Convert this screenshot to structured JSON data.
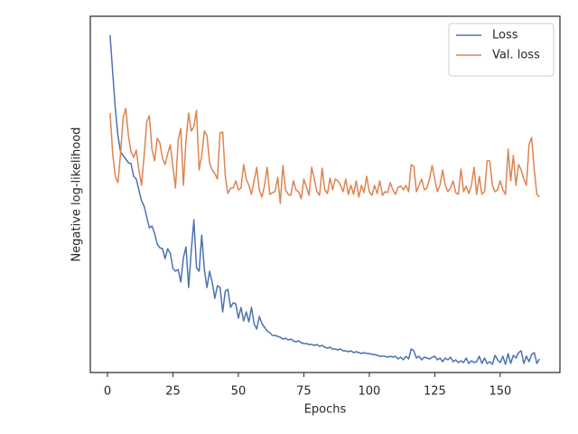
{
  "chart_data": {
    "type": "line",
    "x_label": "Epochs",
    "y_label": "Negative log-likelihood",
    "x": [
      1,
      2,
      3,
      4,
      5,
      6,
      7,
      8,
      9,
      10,
      11,
      12,
      13,
      14,
      15,
      16,
      17,
      18,
      19,
      20,
      21,
      22,
      23,
      24,
      25,
      26,
      27,
      28,
      29,
      30,
      31,
      32,
      33,
      34,
      35,
      36,
      37,
      38,
      39,
      40,
      41,
      42,
      43,
      44,
      45,
      46,
      47,
      48,
      49,
      50,
      51,
      52,
      53,
      54,
      55,
      56,
      57,
      58,
      59,
      60,
      61,
      62,
      63,
      64,
      65,
      66,
      67,
      68,
      69,
      70,
      71,
      72,
      73,
      74,
      75,
      76,
      77,
      78,
      79,
      80,
      81,
      82,
      83,
      84,
      85,
      86,
      87,
      88,
      89,
      90,
      91,
      92,
      93,
      94,
      95,
      96,
      97,
      98,
      99,
      100,
      101,
      102,
      103,
      104,
      105,
      106,
      107,
      108,
      109,
      110,
      111,
      112,
      113,
      114,
      115,
      116,
      117,
      118,
      119,
      120,
      121,
      122,
      123,
      124,
      125,
      126,
      127,
      128,
      129,
      130,
      131,
      132,
      133,
      134,
      135,
      136,
      137,
      138,
      139,
      140,
      141,
      142,
      143,
      144,
      145,
      146,
      147,
      148,
      149,
      150,
      151,
      152,
      153,
      154,
      155,
      156,
      157,
      158,
      159,
      160,
      161,
      162,
      163,
      164,
      165
    ],
    "series": [
      {
        "name": "Loss",
        "color": "#4c72b0",
        "values": [
          3.73,
          3.32,
          2.92,
          2.62,
          2.44,
          2.4,
          2.36,
          2.32,
          2.31,
          2.17,
          2.14,
          2.02,
          1.9,
          1.84,
          1.72,
          1.6,
          1.62,
          1.54,
          1.42,
          1.38,
          1.37,
          1.26,
          1.37,
          1.32,
          1.15,
          1.12,
          1.14,
          1.0,
          1.27,
          1.39,
          0.94,
          1.34,
          1.69,
          1.16,
          1.12,
          1.52,
          1.14,
          0.94,
          1.12,
          1.0,
          0.82,
          0.96,
          0.94,
          0.67,
          0.9,
          0.92,
          0.72,
          0.77,
          0.76,
          0.6,
          0.72,
          0.57,
          0.67,
          0.56,
          0.72,
          0.54,
          0.48,
          0.62,
          0.54,
          0.5,
          0.46,
          0.44,
          0.41,
          0.41,
          0.4,
          0.39,
          0.37,
          0.38,
          0.36,
          0.37,
          0.35,
          0.34,
          0.35,
          0.33,
          0.32,
          0.32,
          0.31,
          0.31,
          0.3,
          0.31,
          0.29,
          0.3,
          0.28,
          0.27,
          0.28,
          0.26,
          0.26,
          0.25,
          0.26,
          0.24,
          0.24,
          0.23,
          0.24,
          0.22,
          0.23,
          0.22,
          0.21,
          0.22,
          0.21,
          0.21,
          0.2,
          0.2,
          0.19,
          0.18,
          0.18,
          0.18,
          0.17,
          0.18,
          0.17,
          0.18,
          0.15,
          0.17,
          0.14,
          0.18,
          0.15,
          0.26,
          0.24,
          0.16,
          0.18,
          0.14,
          0.17,
          0.16,
          0.15,
          0.17,
          0.18,
          0.14,
          0.16,
          0.12,
          0.16,
          0.14,
          0.17,
          0.12,
          0.14,
          0.11,
          0.13,
          0.11,
          0.16,
          0.1,
          0.13,
          0.11,
          0.12,
          0.18,
          0.1,
          0.16,
          0.1,
          0.12,
          0.09,
          0.19,
          0.14,
          0.11,
          0.18,
          0.09,
          0.21,
          0.1,
          0.19,
          0.16,
          0.22,
          0.24,
          0.1,
          0.18,
          0.12,
          0.2,
          0.22,
          0.1,
          0.15
        ]
      },
      {
        "name": "Val. loss",
        "color": "#dd8452",
        "values": [
          2.87,
          2.42,
          2.17,
          2.1,
          2.42,
          2.82,
          2.92,
          2.62,
          2.44,
          2.38,
          2.46,
          2.24,
          2.07,
          2.4,
          2.77,
          2.84,
          2.47,
          2.34,
          2.59,
          2.54,
          2.37,
          2.3,
          2.42,
          2.52,
          2.27,
          2.04,
          2.57,
          2.7,
          2.07,
          2.57,
          2.87,
          2.67,
          2.72,
          2.9,
          2.24,
          2.4,
          2.67,
          2.62,
          2.32,
          2.24,
          2.2,
          2.14,
          2.65,
          2.66,
          2.17,
          1.98,
          2.04,
          2.04,
          2.12,
          2.02,
          2.04,
          2.3,
          2.14,
          2.07,
          1.97,
          2.12,
          2.27,
          2.02,
          1.94,
          2.07,
          2.27,
          1.97,
          1.99,
          2.0,
          2.16,
          1.87,
          2.29,
          2.02,
          1.97,
          1.96,
          2.12,
          2.02,
          2.0,
          1.92,
          2.14,
          2.05,
          1.96,
          2.27,
          2.14,
          2.0,
          1.96,
          2.26,
          2.02,
          1.98,
          2.15,
          2.02,
          2.14,
          2.12,
          2.07,
          2.0,
          2.14,
          1.97,
          2.07,
          1.97,
          2.12,
          1.94,
          2.07,
          1.99,
          2.17,
          2.0,
          1.96,
          2.07,
          1.98,
          2.12,
          1.96,
          2.0,
          1.99,
          2.1,
          2.02,
          1.97,
          2.05,
          2.06,
          2.02,
          2.07,
          2.0,
          2.3,
          2.28,
          2.0,
          2.07,
          2.14,
          2.02,
          2.04,
          2.14,
          2.29,
          2.14,
          2.0,
          2.07,
          2.24,
          2.07,
          2.0,
          2.04,
          2.12,
          1.99,
          1.97,
          2.25,
          2.0,
          2.06,
          1.98,
          2.07,
          2.27,
          1.97,
          2.17,
          1.97,
          2.0,
          2.34,
          2.34,
          2.07,
          2.0,
          2.02,
          2.12,
          2.02,
          1.97,
          2.47,
          2.12,
          2.4,
          2.07,
          2.3,
          2.24,
          2.14,
          2.07,
          2.52,
          2.6,
          2.24,
          1.97,
          1.94
        ]
      }
    ],
    "xlim": [
      -6.55,
      172.8
    ],
    "xticks": [
      0,
      25,
      50,
      75,
      100,
      125,
      150
    ],
    "ylim": [
      0,
      3.94
    ],
    "legend": "upper right"
  }
}
